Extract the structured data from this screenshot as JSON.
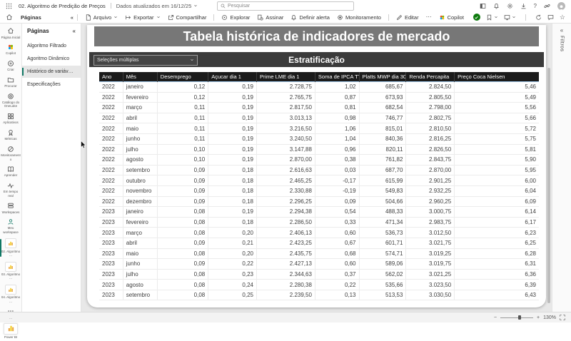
{
  "topbar": {
    "report_title": "02. Algoritmo de Predição de Preços",
    "updated_text": "Dados atualizados em 16/12/25",
    "search_placeholder": "Pesquisar"
  },
  "menubar": {
    "pages_toggle_label": "Páginas",
    "items": [
      {
        "label": "Arquivo",
        "icon": "file",
        "dropdown": true
      },
      {
        "label": "Exportar",
        "icon": "export",
        "dropdown": true
      },
      {
        "label": "Compartilhar",
        "icon": "share",
        "dropdown": false
      },
      {
        "label": "Explorar",
        "icon": "explore",
        "dropdown": false,
        "divider_before": true
      },
      {
        "label": "Assinar",
        "icon": "subscribe",
        "dropdown": false
      },
      {
        "label": "Definir alerta",
        "icon": "bell",
        "dropdown": false
      },
      {
        "label": "Monitoramento",
        "icon": "monitor-dot",
        "dropdown": false
      },
      {
        "label": "Editar",
        "icon": "edit",
        "dropdown": false,
        "divider_before": true
      }
    ],
    "more_label": "⋯",
    "copilot_label": "Copilot"
  },
  "rail": {
    "items": [
      {
        "label": "Página Inicial",
        "icon": "home"
      },
      {
        "label": "Copilot",
        "icon": "copilot"
      },
      {
        "label": "Criar",
        "icon": "plus-circle"
      },
      {
        "label": "Procurar",
        "icon": "folder"
      },
      {
        "label": "Catálogo do OneLake",
        "icon": "onelake"
      },
      {
        "label": "Aplicativos",
        "icon": "apps"
      },
      {
        "label": "Métricas",
        "icon": "metrics"
      },
      {
        "label": "Monitoramento",
        "icon": "monitor-ring"
      },
      {
        "label": "Aprender",
        "icon": "book"
      },
      {
        "label": "Em tempo real",
        "icon": "pulse"
      },
      {
        "label": "Workspaces",
        "icon": "layers"
      },
      {
        "label": "Meu workspace",
        "icon": "person"
      },
      {
        "label": "02. Algoritmo …",
        "icon": "report",
        "selected": true
      },
      {
        "label": "03. Algoritmo …",
        "icon": "report"
      },
      {
        "label": "04. Algoritmo …",
        "icon": "report"
      },
      {
        "label": "…",
        "icon": "dots"
      }
    ],
    "power_bi_label": "Power BI"
  },
  "pages_panel": {
    "title": "Páginas",
    "items": [
      {
        "label": "Algoritmo Filtrado",
        "selected": false
      },
      {
        "label": "Agoritmo Dinâmico",
        "selected": false
      },
      {
        "label": "Histórico de variáveis c...",
        "selected": true
      },
      {
        "label": "Especificações",
        "selected": false
      }
    ]
  },
  "report": {
    "title": "Tabela histórica de indicadores de mercado",
    "slicer_value": "Seleções múltiplas",
    "section_title": "Estratificação"
  },
  "table": {
    "columns": [
      "Ano",
      "Mês",
      "Desemprego",
      "Açucar dia 1",
      "Prime LME dia 1",
      "Soma de IPCA TT",
      "Platts MWP dia 30",
      "Renda Percapita",
      "Preço Coca Nielsen"
    ],
    "rows": [
      [
        "2022",
        "janeiro",
        "0,12",
        "0,19",
        "2.728,75",
        "1,02",
        "685,67",
        "2.824,50",
        "5,46"
      ],
      [
        "2022",
        "fevereiro",
        "0,12",
        "0,19",
        "2.765,75",
        "0,87",
        "673,93",
        "2.805,50",
        "5,49"
      ],
      [
        "2022",
        "março",
        "0,11",
        "0,19",
        "2.817,50",
        "0,81",
        "682,54",
        "2.798,00",
        "5,56"
      ],
      [
        "2022",
        "abril",
        "0,11",
        "0,19",
        "3.013,13",
        "0,98",
        "746,77",
        "2.802,75",
        "5,66"
      ],
      [
        "2022",
        "maio",
        "0,11",
        "0,19",
        "3.216,50",
        "1,06",
        "815,01",
        "2.810,50",
        "5,72"
      ],
      [
        "2022",
        "junho",
        "0,11",
        "0,19",
        "3.240,50",
        "1,04",
        "840,36",
        "2.816,25",
        "5,75"
      ],
      [
        "2022",
        "julho",
        "0,10",
        "0,19",
        "3.147,88",
        "0,96",
        "820,11",
        "2.826,50",
        "5,81"
      ],
      [
        "2022",
        "agosto",
        "0,10",
        "0,19",
        "2.870,00",
        "0,38",
        "761,82",
        "2.843,75",
        "5,90"
      ],
      [
        "2022",
        "setembro",
        "0,09",
        "0,18",
        "2.616,63",
        "0,03",
        "687,70",
        "2.870,00",
        "5,95"
      ],
      [
        "2022",
        "outubro",
        "0,09",
        "0,18",
        "2.465,25",
        "-0,17",
        "615,99",
        "2.901,25",
        "6,00"
      ],
      [
        "2022",
        "novembro",
        "0,09",
        "0,18",
        "2.330,88",
        "-0,19",
        "549,83",
        "2.932,25",
        "6,04"
      ],
      [
        "2022",
        "dezembro",
        "0,09",
        "0,18",
        "2.296,25",
        "0,09",
        "504,66",
        "2.960,25",
        "6,09"
      ],
      [
        "2023",
        "janeiro",
        "0,08",
        "0,19",
        "2.294,38",
        "0,54",
        "488,33",
        "3.000,75",
        "6,14"
      ],
      [
        "2023",
        "fevereiro",
        "0,08",
        "0,18",
        "2.286,50",
        "0,33",
        "471,34",
        "2.983,75",
        "6,17"
      ],
      [
        "2023",
        "março",
        "0,08",
        "0,20",
        "2.406,13",
        "0,60",
        "536,73",
        "3.012,50",
        "6,23"
      ],
      [
        "2023",
        "abril",
        "0,09",
        "0,21",
        "2.423,25",
        "0,67",
        "601,71",
        "3.021,75",
        "6,25"
      ],
      [
        "2023",
        "maio",
        "0,08",
        "0,20",
        "2.435,75",
        "0,68",
        "574,71",
        "3.019,25",
        "6,28"
      ],
      [
        "2023",
        "junho",
        "0,09",
        "0,22",
        "2.427,13",
        "0,60",
        "589,06",
        "3.019,75",
        "6,31"
      ],
      [
        "2023",
        "julho",
        "0,08",
        "0,23",
        "2.344,63",
        "0,37",
        "562,02",
        "3.021,25",
        "6,36"
      ],
      [
        "2023",
        "agosto",
        "0,08",
        "0,24",
        "2.280,38",
        "0,22",
        "535,66",
        "3.023,50",
        "6,39"
      ],
      [
        "2023",
        "setembro",
        "0,08",
        "0,25",
        "2.239,50",
        "0,13",
        "513,53",
        "3.030,50",
        "6,43"
      ]
    ]
  },
  "filters_panel_label": "Filtros",
  "statusbar": {
    "zoom_level": "130%"
  },
  "colors": {
    "accent_green": "#117865",
    "banner_bg": "#777777",
    "slicer_bg": "#3b3b3b",
    "table_header_bg": "#1b1b1b",
    "report_icon_yellow": "#f2c811"
  }
}
